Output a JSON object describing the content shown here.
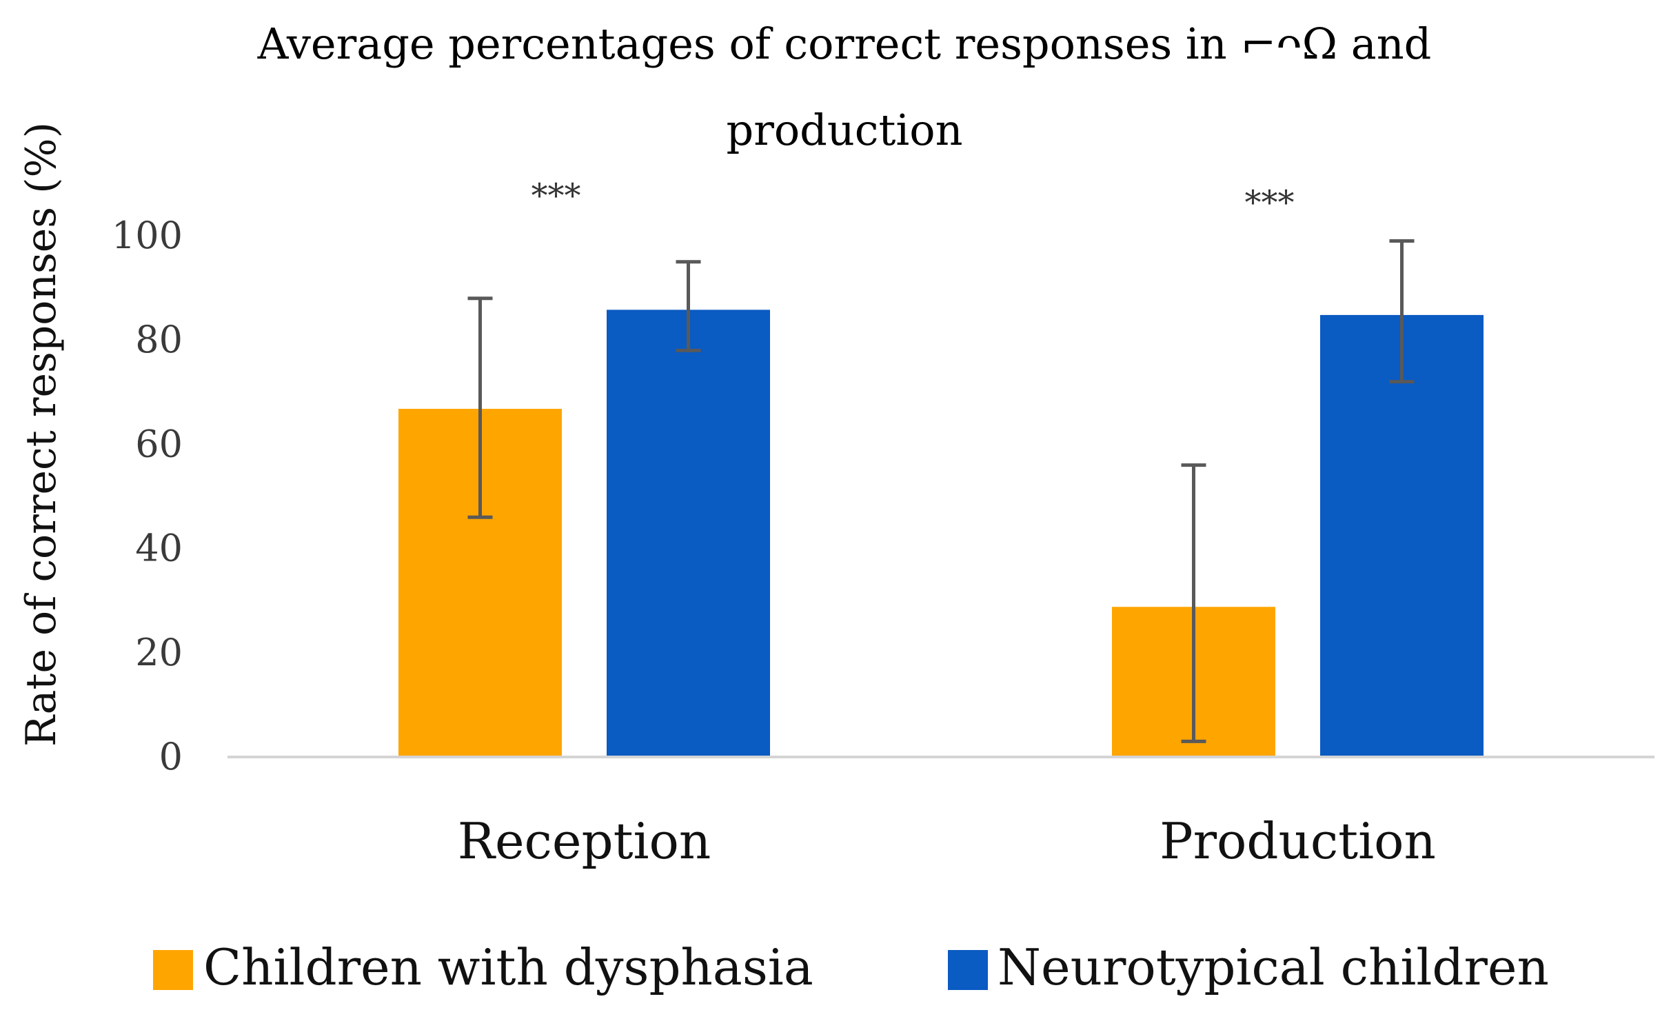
{
  "chart_data": {
    "type": "bar",
    "title_lines": [
      "Average percentages of correct responses in ⌐ᴖΩ and",
      "production"
    ],
    "ylabel": "Rate of correct responses (%)",
    "xlabel": "",
    "ylim": [
      0,
      100
    ],
    "yticks": [
      0,
      20,
      40,
      60,
      80,
      100
    ],
    "grid": false,
    "legend_position": "bottom",
    "categories": [
      "Reception",
      "Production"
    ],
    "series": [
      {
        "name": "Children with dysphasia",
        "color": "#FFA500",
        "values": [
          67,
          29
        ],
        "error": [
          [
            46,
            88
          ],
          [
            3,
            56
          ]
        ]
      },
      {
        "name": "Neurotypical children",
        "color": "#0A5BC2",
        "values": [
          86,
          85
        ],
        "error": [
          [
            78,
            95
          ],
          [
            72,
            99
          ]
        ]
      }
    ],
    "annotations": [
      "***",
      "***"
    ]
  }
}
